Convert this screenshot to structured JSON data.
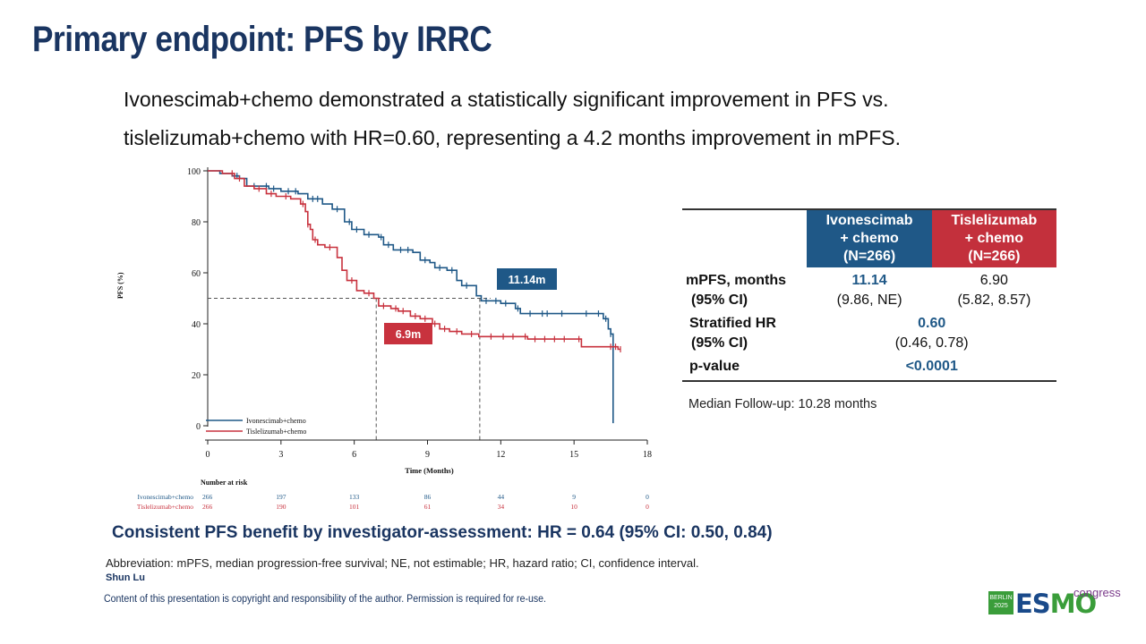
{
  "slide": {
    "title": "Primary endpoint: PFS by IRRC",
    "subtitle_line1": "Ivonescimab+chemo demonstrated a statistically significant improvement in PFS vs.",
    "subtitle_line2": "tislelizumab+chemo with HR=0.60, representing a 4.2 months improvement in mPFS.",
    "consistent_note": "Consistent PFS benefit by investigator-assessment: HR = 0.64 (95% CI: 0.50, 0.84)",
    "abbreviation": "Abbreviation: mPFS, median progression-free survival; NE, not estimable; HR, hazard ratio; CI, confidence interval.",
    "presenter": "Shun Lu",
    "copyright": "Content of this presentation is copyright and responsibility of the author. Permission is required for re-use.",
    "logo": {
      "badge_line1": "BERLIN",
      "badge_line2": "2025",
      "word_es": "ES",
      "word_mo": "MO",
      "congress": "congress"
    }
  },
  "results_table": {
    "col_ivo": [
      "Ivonescimab",
      "+ chemo",
      "(N=266)"
    ],
    "col_tis": [
      "Tislelizumab",
      "+ chemo",
      "(N=266)"
    ],
    "mpfs_label": "mPFS, months",
    "mpfs_ci_label": "(95% CI)",
    "mpfs_ivo": "11.14",
    "mpfs_ivo_ci": "(9.86, NE)",
    "mpfs_tis": "6.90",
    "mpfs_tis_ci": "(5.82, 8.57)",
    "hr_label": "Stratified HR",
    "hr_ci_label": "(95% CI)",
    "hr_value": "0.60",
    "hr_ci": "(0.46, 0.78)",
    "p_label": "p-value",
    "p_value": "<0.0001",
    "followup": "Median Follow-up: 10.28 months"
  },
  "chart_data": {
    "type": "line",
    "subtype": "kaplan-meier",
    "xlabel": "Time (Months)",
    "ylabel": "PFS (%)",
    "xlim": [
      0,
      18
    ],
    "ylim": [
      0,
      100
    ],
    "xticks": [
      0,
      3,
      6,
      9,
      12,
      15,
      18
    ],
    "yticks": [
      0,
      20,
      40,
      60,
      80,
      100
    ],
    "grid": false,
    "legend_position": "bottom-left",
    "series": [
      {
        "name": "Ivonescimab+chemo",
        "color": "#1f5887",
        "median_label": "11.14m",
        "median_x": 11.14,
        "steps": [
          [
            0,
            100
          ],
          [
            0.5,
            99
          ],
          [
            1.0,
            98
          ],
          [
            1.3,
            97
          ],
          [
            1.6,
            94
          ],
          [
            2.5,
            93
          ],
          [
            3.0,
            92
          ],
          [
            3.7,
            91
          ],
          [
            4.1,
            89
          ],
          [
            4.7,
            87
          ],
          [
            5.1,
            85
          ],
          [
            5.6,
            80
          ],
          [
            5.9,
            77
          ],
          [
            6.4,
            75
          ],
          [
            7.0,
            74
          ],
          [
            7.2,
            71
          ],
          [
            7.6,
            69
          ],
          [
            8.4,
            68
          ],
          [
            8.7,
            65
          ],
          [
            9.1,
            64
          ],
          [
            9.3,
            62
          ],
          [
            9.8,
            61
          ],
          [
            10.2,
            57
          ],
          [
            10.4,
            55
          ],
          [
            11.0,
            51
          ],
          [
            11.2,
            49
          ],
          [
            12.0,
            48
          ],
          [
            12.6,
            46
          ],
          [
            12.8,
            44
          ],
          [
            16.2,
            42
          ],
          [
            16.4,
            38
          ],
          [
            16.5,
            36
          ],
          [
            16.6,
            1
          ]
        ],
        "censor_times": [
          1.2,
          1.9,
          2.4,
          2.7,
          3.3,
          3.6,
          4.3,
          4.5,
          5.3,
          5.8,
          6.1,
          6.6,
          7.1,
          7.4,
          7.9,
          8.2,
          8.9,
          9.5,
          10.0,
          10.6,
          11.4,
          11.8,
          12.2,
          12.7,
          13.2,
          13.7,
          13.9,
          14.5,
          15.5,
          16.0,
          16.3,
          16.5
        ],
        "at_risk": [
          "266",
          "197",
          "133",
          "86",
          "44",
          "9",
          "0"
        ]
      },
      {
        "name": "Tislelizumab+chemo",
        "color": "#c8323e",
        "median_label": "6.9m",
        "median_x": 6.9,
        "steps": [
          [
            0,
            100
          ],
          [
            0.6,
            99
          ],
          [
            1.1,
            97
          ],
          [
            1.5,
            94
          ],
          [
            1.9,
            93
          ],
          [
            2.4,
            91
          ],
          [
            2.8,
            90
          ],
          [
            3.4,
            89
          ],
          [
            3.8,
            87
          ],
          [
            4.0,
            84
          ],
          [
            4.1,
            79
          ],
          [
            4.2,
            77
          ],
          [
            4.3,
            73
          ],
          [
            4.5,
            71
          ],
          [
            4.8,
            70
          ],
          [
            5.3,
            66
          ],
          [
            5.5,
            61
          ],
          [
            5.7,
            57
          ],
          [
            6.1,
            53
          ],
          [
            6.4,
            52
          ],
          [
            6.8,
            50
          ],
          [
            7.0,
            47
          ],
          [
            7.5,
            46
          ],
          [
            7.8,
            45
          ],
          [
            8.3,
            43
          ],
          [
            8.7,
            42
          ],
          [
            9.2,
            40
          ],
          [
            9.5,
            38
          ],
          [
            9.9,
            37
          ],
          [
            10.4,
            36
          ],
          [
            11.1,
            35
          ],
          [
            13.1,
            34
          ],
          [
            15.3,
            31
          ],
          [
            16.8,
            30
          ]
        ],
        "censor_times": [
          1.0,
          1.3,
          2.1,
          2.6,
          3.2,
          3.9,
          4.1,
          4.4,
          5.0,
          5.9,
          6.6,
          7.2,
          7.7,
          8.0,
          8.5,
          8.9,
          9.3,
          9.7,
          10.2,
          10.8,
          11.6,
          12.1,
          12.5,
          13.0,
          13.4,
          13.8,
          14.2,
          14.6,
          15.2,
          16.5,
          16.7,
          16.9
        ],
        "at_risk": [
          "266",
          "190",
          "101",
          "61",
          "34",
          "10",
          "0"
        ]
      }
    ],
    "reference_y": 50,
    "at_risk_title": "Number at risk",
    "at_risk_times": [
      0,
      3,
      6,
      9,
      12,
      15,
      18
    ]
  }
}
